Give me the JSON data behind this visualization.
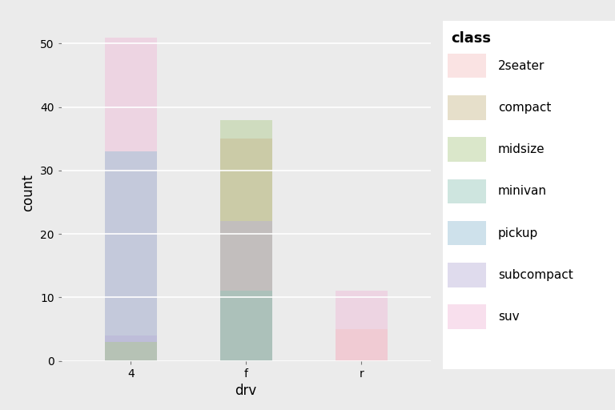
{
  "drv_categories": [
    "4",
    "f",
    "r"
  ],
  "classes": [
    "2seater",
    "compact",
    "midsize",
    "minivan",
    "pickup",
    "subcompact",
    "suv"
  ],
  "colors": {
    "2seater": "#F4C2C2",
    "compact": "#C8B88A",
    "midsize": "#AECA8A",
    "minivan": "#93C6B8",
    "pickup": "#93BDD4",
    "subcompact": "#B8B0D8",
    "suv": "#F0B8D8"
  },
  "counts": {
    "4": {
      "2seater": 0,
      "compact": 0,
      "midsize": 3,
      "minivan": 0,
      "pickup": 33,
      "subcompact": 4,
      "suv": 51
    },
    "f": {
      "2seater": 0,
      "compact": 35,
      "midsize": 38,
      "minivan": 11,
      "pickup": 0,
      "subcompact": 22,
      "suv": 0
    },
    "r": {
      "2seater": 5,
      "compact": 0,
      "midsize": 0,
      "minivan": 0,
      "pickup": 0,
      "subcompact": 0,
      "suv": 11
    }
  },
  "xlabel": "drv",
  "ylabel": "count",
  "ylim": [
    0,
    53
  ],
  "yticks": [
    0,
    10,
    20,
    30,
    40,
    50
  ],
  "alpha": 0.45,
  "bar_width": 0.45,
  "panel_background": "#EBEBEB",
  "fig_background": "#EBEBEB",
  "legend_background": "#FFFFFF",
  "legend_title": "class",
  "legend_title_fontsize": 13,
  "legend_fontsize": 11,
  "axis_label_fontsize": 12,
  "tick_fontsize": 10,
  "grid_color": "#FFFFFF",
  "grid_linewidth": 1.2
}
